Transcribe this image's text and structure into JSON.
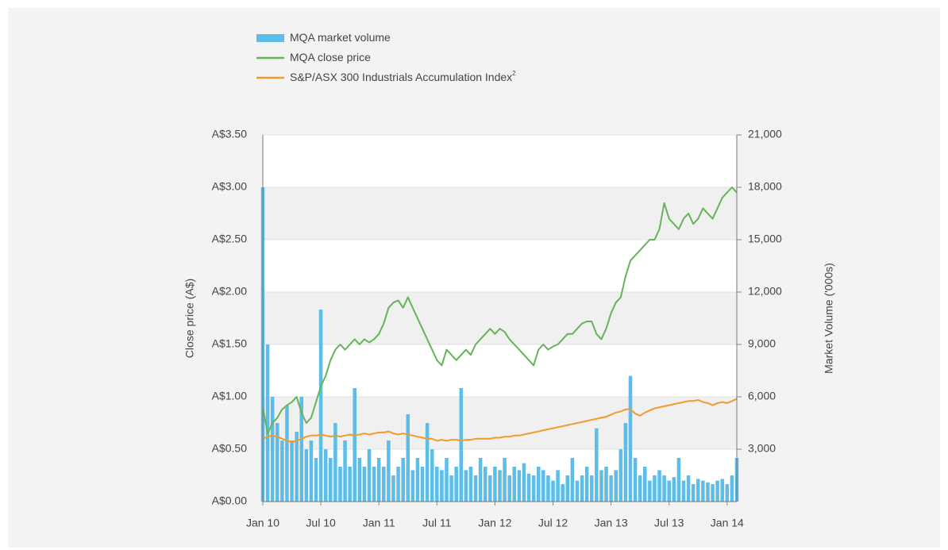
{
  "chart_data": {
    "type": "combo",
    "x_axis_ticks_note": null,
    "xlim": [
      0,
      49
    ],
    "xticks": [
      {
        "value": 0,
        "label": "Jan 10"
      },
      {
        "value": 6,
        "label": "Jul 10"
      },
      {
        "value": 12,
        "label": "Jan 11"
      },
      {
        "value": 18,
        "label": "Jul 11"
      },
      {
        "value": 24,
        "label": "Jan 12"
      },
      {
        "value": 30,
        "label": "Jul 12"
      },
      {
        "value": 36,
        "label": "Jan 13"
      },
      {
        "value": 42,
        "label": "Jul 13"
      },
      {
        "value": 48,
        "label": "Jan 14"
      }
    ],
    "ylabel": "Close price (A$)",
    "y2label": "Market Volume ('000s)",
    "ylim": [
      0,
      3.5
    ],
    "yticks": [
      {
        "value": 0,
        "label": "A$0.00"
      },
      {
        "value": 0.5,
        "label": "A$0.50"
      },
      {
        "value": 1,
        "label": "A$1.00"
      },
      {
        "value": 1.5,
        "label": "A$1.50"
      },
      {
        "value": 2,
        "label": "A$2.00"
      },
      {
        "value": 2.5,
        "label": "A$2.50"
      },
      {
        "value": 3,
        "label": "A$3.00"
      },
      {
        "value": 3.5,
        "label": "A$3.50"
      }
    ],
    "y2lim": [
      0,
      21000
    ],
    "y2ticks": [
      {
        "value": 3000,
        "label": "3,000"
      },
      {
        "value": 6000,
        "label": "6,000"
      },
      {
        "value": 9000,
        "label": "9,000"
      },
      {
        "value": 12000,
        "label": "12,000"
      },
      {
        "value": 15000,
        "label": "15,000"
      },
      {
        "value": 18000,
        "label": "18,000"
      },
      {
        "value": 21000,
        "label": "21,000"
      }
    ],
    "x": [
      0,
      0.5,
      1,
      1.5,
      2,
      2.5,
      3,
      3.5,
      4,
      4.5,
      5,
      5.5,
      6,
      6.5,
      7,
      7.5,
      8,
      8.5,
      9,
      9.5,
      10,
      10.5,
      11,
      11.5,
      12,
      12.5,
      13,
      13.5,
      14,
      14.5,
      15,
      15.5,
      16,
      16.5,
      17,
      17.5,
      18,
      18.5,
      19,
      19.5,
      20,
      20.5,
      21,
      21.5,
      22,
      22.5,
      23,
      23.5,
      24,
      24.5,
      25,
      25.5,
      26,
      26.5,
      27,
      27.5,
      28,
      28.5,
      29,
      29.5,
      30,
      30.5,
      31,
      31.5,
      32,
      32.5,
      33,
      33.5,
      34,
      34.5,
      35,
      35.5,
      36,
      36.5,
      37,
      37.5,
      38,
      38.5,
      39,
      39.5,
      40,
      40.5,
      41,
      41.5,
      42,
      42.5,
      43,
      43.5,
      44,
      44.5,
      45,
      45.5,
      46,
      46.5,
      47,
      47.5,
      48,
      48.5,
      49
    ],
    "series": [
      {
        "name": "MQA market volume",
        "kind": "bar",
        "axis": "y2",
        "color": "#5bbde8",
        "values": [
          18000,
          9000,
          6000,
          4500,
          3500,
          5500,
          3500,
          4000,
          6000,
          3000,
          3500,
          2500,
          11000,
          3000,
          2500,
          4500,
          2000,
          3500,
          2000,
          6500,
          2500,
          2000,
          3000,
          2000,
          2500,
          2000,
          3500,
          1500,
          2000,
          2500,
          5000,
          1800,
          2500,
          2000,
          4500,
          3000,
          2000,
          1800,
          2500,
          1500,
          2000,
          6500,
          1800,
          2000,
          1500,
          2500,
          2000,
          1500,
          2000,
          1800,
          2500,
          1500,
          2000,
          1800,
          2200,
          1600,
          1500,
          2000,
          1800,
          1500,
          1200,
          1800,
          1000,
          1500,
          2500,
          1200,
          1500,
          2000,
          1500,
          4200,
          1800,
          2000,
          1500,
          1800,
          3000,
          4500,
          7200,
          2500,
          1500,
          2000,
          1200,
          1500,
          1800,
          1500,
          1200,
          1400,
          2500,
          1200,
          1500,
          1000,
          1300,
          1200,
          1100,
          1000,
          1200,
          1300,
          1000,
          1500,
          2500
        ]
      },
      {
        "name": "MQA close price",
        "kind": "line",
        "color": "#66b35a",
        "values": [
          0.9,
          0.65,
          0.75,
          0.8,
          0.88,
          0.92,
          0.95,
          1.0,
          0.85,
          0.75,
          0.8,
          0.95,
          1.1,
          1.2,
          1.35,
          1.45,
          1.5,
          1.45,
          1.5,
          1.55,
          1.5,
          1.55,
          1.52,
          1.55,
          1.6,
          1.7,
          1.85,
          1.9,
          1.92,
          1.85,
          1.95,
          1.85,
          1.75,
          1.65,
          1.55,
          1.45,
          1.35,
          1.3,
          1.45,
          1.4,
          1.35,
          1.4,
          1.45,
          1.4,
          1.5,
          1.55,
          1.6,
          1.65,
          1.6,
          1.65,
          1.62,
          1.55,
          1.5,
          1.45,
          1.4,
          1.35,
          1.3,
          1.45,
          1.5,
          1.45,
          1.48,
          1.5,
          1.55,
          1.6,
          1.6,
          1.65,
          1.7,
          1.72,
          1.72,
          1.6,
          1.55,
          1.65,
          1.8,
          1.9,
          1.95,
          2.15,
          2.3,
          2.35,
          2.4,
          2.45,
          2.5,
          2.5,
          2.6,
          2.85,
          2.7,
          2.65,
          2.6,
          2.7,
          2.75,
          2.65,
          2.7,
          2.8,
          2.75,
          2.7,
          2.8,
          2.9,
          2.95,
          3.0,
          2.95
        ]
      },
      {
        "name": "S&P/ASX 300 Industrials Accumulation Index",
        "note_ref": "2",
        "kind": "line",
        "color": "#f39a2c",
        "values": [
          0.6,
          0.62,
          0.63,
          0.62,
          0.6,
          0.58,
          0.57,
          0.58,
          0.6,
          0.62,
          0.63,
          0.63,
          0.64,
          0.63,
          0.62,
          0.63,
          0.62,
          0.63,
          0.64,
          0.63,
          0.64,
          0.65,
          0.64,
          0.65,
          0.66,
          0.66,
          0.67,
          0.65,
          0.64,
          0.65,
          0.64,
          0.63,
          0.62,
          0.61,
          0.6,
          0.6,
          0.58,
          0.59,
          0.58,
          0.59,
          0.59,
          0.58,
          0.59,
          0.59,
          0.6,
          0.6,
          0.6,
          0.6,
          0.61,
          0.61,
          0.62,
          0.62,
          0.63,
          0.63,
          0.64,
          0.65,
          0.66,
          0.67,
          0.68,
          0.69,
          0.7,
          0.71,
          0.72,
          0.73,
          0.74,
          0.75,
          0.76,
          0.77,
          0.78,
          0.79,
          0.8,
          0.81,
          0.83,
          0.85,
          0.86,
          0.88,
          0.88,
          0.84,
          0.82,
          0.85,
          0.87,
          0.89,
          0.9,
          0.91,
          0.92,
          0.93,
          0.94,
          0.95,
          0.96,
          0.96,
          0.97,
          0.95,
          0.94,
          0.92,
          0.94,
          0.95,
          0.94,
          0.96,
          0.98
        ]
      }
    ]
  }
}
